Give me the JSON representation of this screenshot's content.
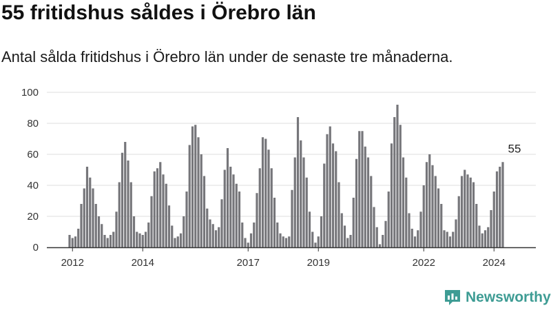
{
  "header": {
    "title": "55 fritidshus såldes i Örebro län",
    "subtitle": "Antal sålda fritidshus i Örebro län under de senaste tre månaderna."
  },
  "brand": {
    "name": "Newsworthy",
    "logo_icon": "bar-chart-logo-icon"
  },
  "colors": {
    "bar": "#76767a",
    "highlight": "#2a9d8f",
    "grid": "#dddddd",
    "axis": "#333333",
    "brand": "#3e9c94"
  },
  "chart_data": {
    "type": "bar",
    "title": "55 fritidshus såldes i Örebro län",
    "subtitle": "Antal sålda fritidshus i Örebro län under de senaste tre månaderna.",
    "xlabel": "",
    "ylabel": "",
    "ylim": [
      0,
      100
    ],
    "yticks": [
      0,
      20,
      40,
      60,
      80,
      100
    ],
    "grid": true,
    "x_axis": {
      "start": "2011-12",
      "end": "2024-08",
      "ticks": [
        {
          "label": "2012",
          "month": "2012-01"
        },
        {
          "label": "2014",
          "month": "2014-01"
        },
        {
          "label": "2017",
          "month": "2017-01"
        },
        {
          "label": "2019",
          "month": "2019-01"
        },
        {
          "label": "2022",
          "month": "2022-01"
        },
        {
          "label": "2024",
          "month": "2024-01"
        }
      ]
    },
    "highlight": {
      "month": "2024-08",
      "value": 55,
      "label": "55"
    },
    "series": [
      {
        "values": [
          8,
          6,
          7,
          12,
          28,
          38,
          52,
          45,
          38,
          28,
          20,
          15,
          8,
          6,
          8,
          10,
          23,
          42,
          61,
          68,
          56,
          42,
          20,
          10,
          9,
          8,
          10,
          16,
          33,
          49,
          51,
          55,
          47,
          41,
          27,
          14,
          6,
          7,
          9,
          20,
          36,
          66,
          78,
          79,
          71,
          60,
          46,
          25,
          18,
          15,
          11,
          13,
          31,
          50,
          64,
          52,
          47,
          41,
          36,
          16,
          6,
          3,
          9,
          16,
          35,
          51,
          71,
          70,
          63,
          51,
          32,
          16,
          9,
          7,
          6,
          7,
          37,
          58,
          84,
          69,
          58,
          45,
          23,
          10,
          3,
          7,
          20,
          54,
          73,
          78,
          67,
          62,
          42,
          22,
          14,
          6,
          8,
          32,
          57,
          75,
          75,
          65,
          58,
          46,
          26,
          13,
          2,
          8,
          17,
          36,
          67,
          84,
          92,
          79,
          58,
          45,
          22,
          12,
          7,
          11,
          23,
          40,
          55,
          60,
          53,
          46,
          38,
          28,
          11,
          10,
          7,
          10,
          18,
          33,
          46,
          50,
          47,
          45,
          42,
          28,
          14,
          9,
          11,
          13,
          24,
          36,
          49,
          52,
          55
        ]
      }
    ]
  }
}
